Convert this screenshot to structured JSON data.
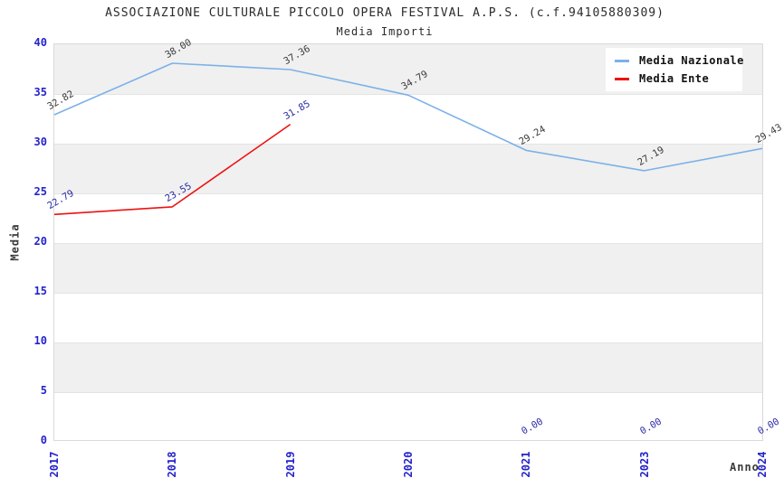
{
  "page": {
    "background": "#ffffff"
  },
  "chart_data": {
    "type": "line",
    "title": "ASSOCIAZIONE CULTURALE PICCOLO OPERA FESTIVAL A.P.S. (c.f.94105880309)",
    "subtitle": "Media Importi",
    "xlabel": "Anno",
    "ylabel": "Media",
    "categories": [
      "2017",
      "2018",
      "2019",
      "2020",
      "2021",
      "2023",
      "2024"
    ],
    "ylim": [
      0,
      40
    ],
    "yticks": [
      0,
      5,
      10,
      15,
      20,
      25,
      30,
      35,
      40
    ],
    "grid": "alternating-horizontal-bands",
    "band_color": "#f0f0f0",
    "gridline_color": "#e4e4e4",
    "tick_color": "#2323cc",
    "axis_label_color": "#3a3a3a",
    "legend": {
      "position": "top-right",
      "background": "#ffffff"
    },
    "series": [
      {
        "name": "Media Nazionale",
        "color": "#7cb1e8",
        "label_color": "#3a3a3a",
        "values": [
          32.82,
          38.0,
          37.36,
          34.79,
          29.24,
          27.19,
          29.43
        ],
        "labels": [
          "32.82",
          "38.00",
          "37.36",
          "34.79",
          "29.24",
          "27.19",
          "29.43"
        ]
      },
      {
        "name": "Media Ente",
        "color": "#ee1111",
        "label_color": "#2a2aa5",
        "values": [
          22.79,
          23.55,
          31.85,
          null,
          0,
          0,
          0
        ],
        "labels": [
          "22.79",
          "23.55",
          "31.85",
          null,
          "0.00",
          "0.00",
          "0.00"
        ],
        "line_indices": [
          0,
          1,
          2
        ]
      }
    ]
  }
}
